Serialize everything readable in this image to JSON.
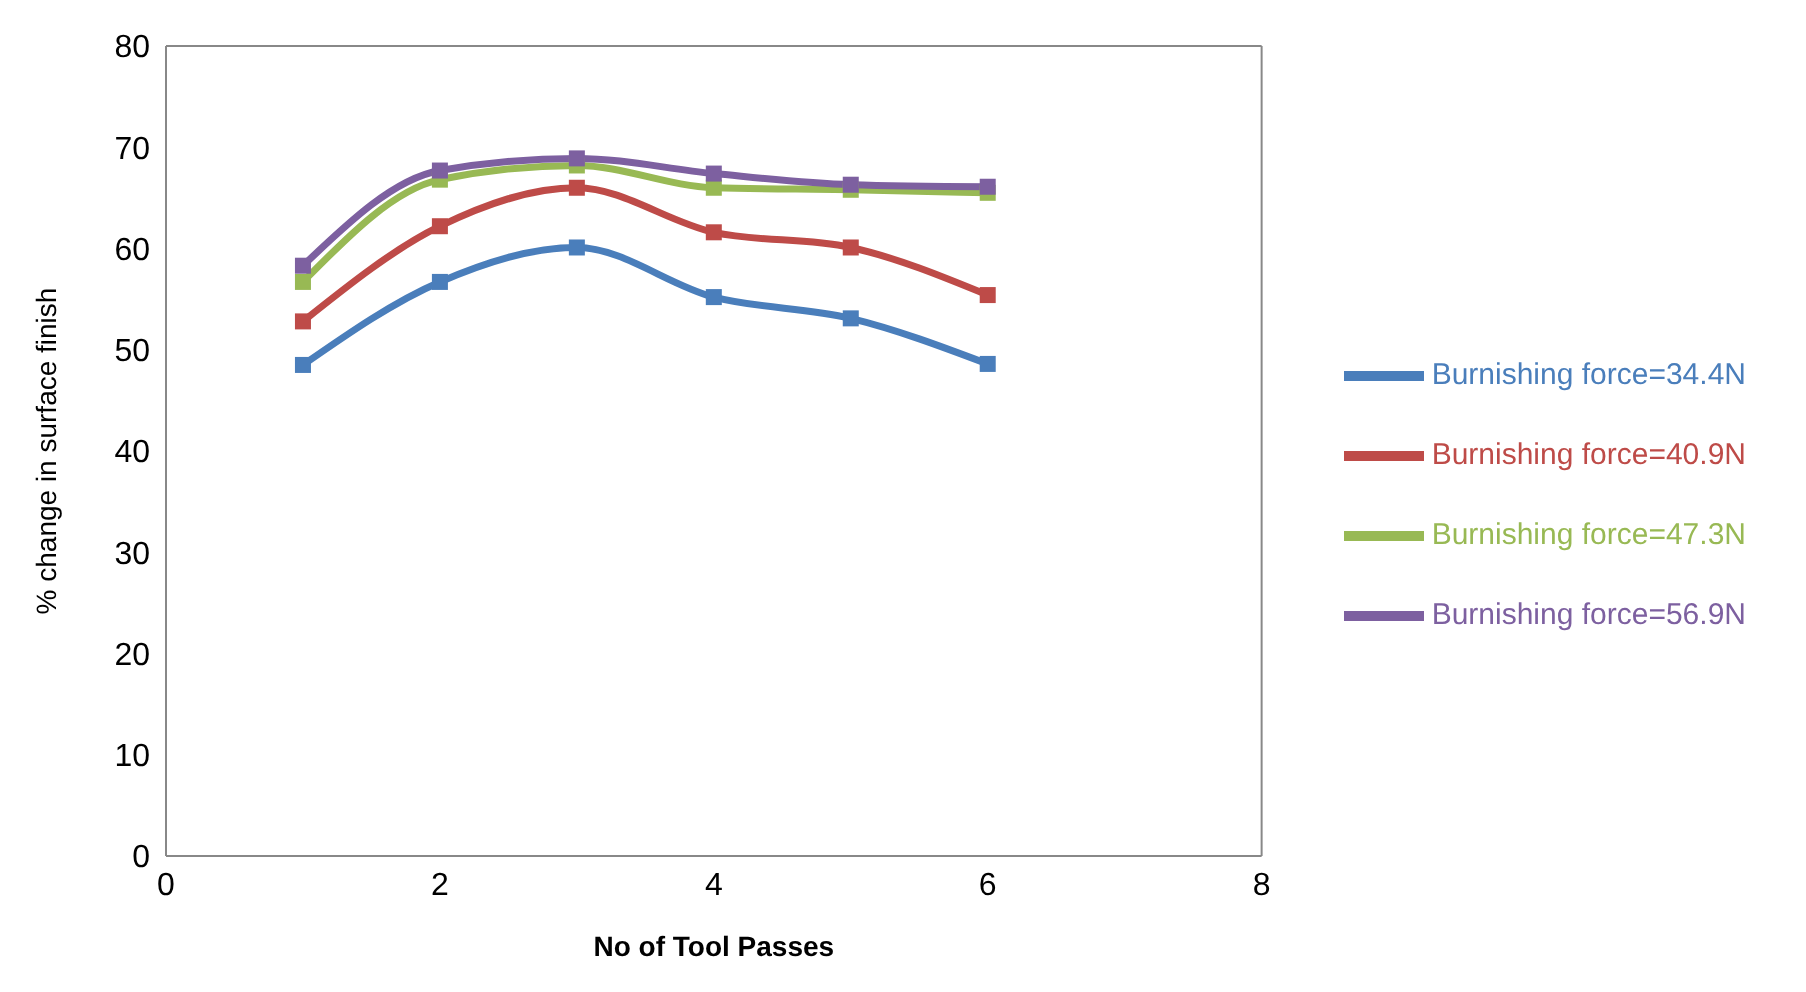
{
  "chart_data": {
    "type": "line",
    "xlabel": "No of Tool Passes",
    "ylabel": "% change in surface finish",
    "x": [
      1,
      2,
      3,
      4,
      5,
      6
    ],
    "xlim": [
      0,
      8
    ],
    "xticks": [
      0,
      2,
      4,
      6,
      8
    ],
    "ylim": [
      0,
      80
    ],
    "yticks": [
      0,
      10,
      20,
      30,
      40,
      50,
      60,
      70,
      80
    ],
    "grid": false,
    "legend": "right",
    "marker": "square",
    "line_style": "solid",
    "series": [
      {
        "name": "Burnishing force=34.4N",
        "color": "#4a7ebb",
        "values": [
          48.5,
          56.7,
          60.1,
          55.2,
          53.1,
          48.6
        ]
      },
      {
        "name": "Burnishing force=40.9N",
        "color": "#be4b48",
        "values": [
          52.8,
          62.2,
          66,
          61.6,
          60.1,
          55.4
        ]
      },
      {
        "name": "Burnishing force=47.3N",
        "color": "#98b954",
        "values": [
          56.7,
          66.8,
          68.2,
          66,
          65.8,
          65.5
        ]
      },
      {
        "name": "Burnishing force=56.9N",
        "color": "#7d60a0",
        "values": [
          58.3,
          67.7,
          68.9,
          67.4,
          66.3,
          66.1
        ]
      }
    ]
  }
}
